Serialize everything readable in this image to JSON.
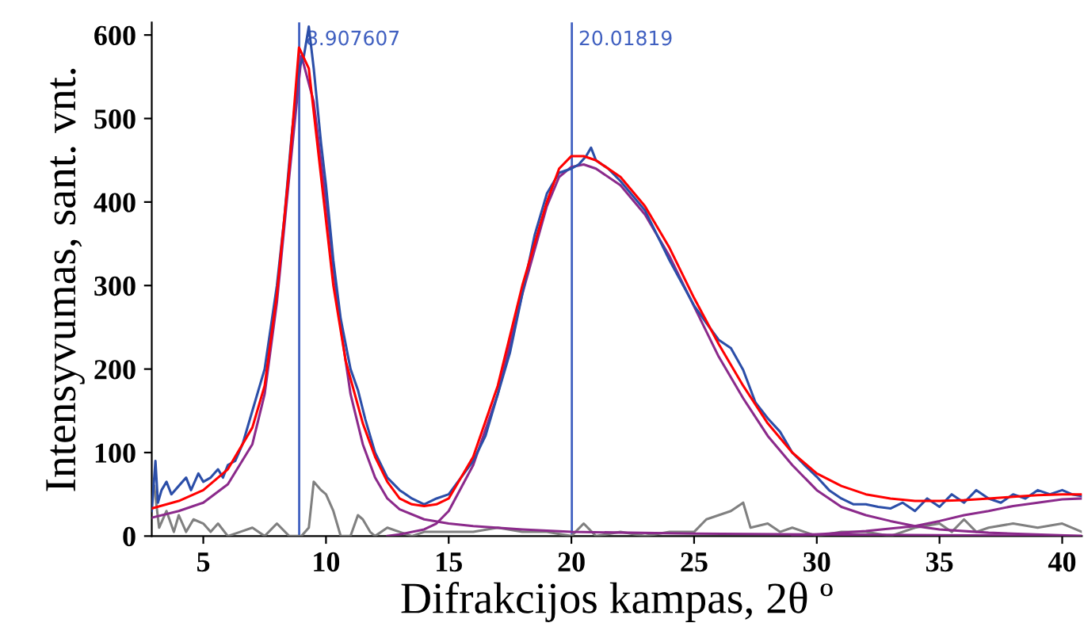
{
  "chart_data": {
    "type": "line",
    "xlabel": "Difrakcijos kampas, 2θ º",
    "ylabel": "Intensyvumas, sant. vnt.",
    "xlim": [
      2.9,
      40.8
    ],
    "ylim": [
      0,
      615
    ],
    "xticks": [
      5,
      10,
      15,
      20,
      25,
      30,
      35,
      40
    ],
    "yticks": [
      0,
      100,
      200,
      300,
      400,
      500,
      600
    ],
    "grid": false,
    "legend": false,
    "series": [
      {
        "color": "#808080",
        "x": [
          3,
          3.2,
          3.5,
          3.8,
          4,
          4.3,
          4.6,
          5,
          5.3,
          5.6,
          6,
          6.5,
          7,
          7.5,
          8,
          8.5,
          9,
          9.3,
          9.5,
          9.8,
          10,
          10.3,
          10.6,
          11,
          11.3,
          11.5,
          11.8,
          12,
          12.5,
          13,
          13.5,
          14,
          15,
          16,
          17,
          18,
          19,
          20,
          20.5,
          21,
          22,
          23,
          24,
          25,
          25.5,
          26,
          26.5,
          27,
          27.3,
          28,
          28.5,
          29,
          30,
          31,
          32,
          33,
          34,
          35,
          35.5,
          36,
          36.5,
          37,
          38,
          39,
          40,
          40.8
        ],
        "values": [
          60,
          10,
          30,
          5,
          25,
          5,
          20,
          15,
          5,
          15,
          0,
          5,
          10,
          0,
          15,
          0,
          0,
          10,
          65,
          55,
          50,
          30,
          0,
          0,
          25,
          20,
          5,
          0,
          10,
          5,
          0,
          5,
          5,
          5,
          10,
          5,
          5,
          0,
          15,
          0,
          5,
          0,
          5,
          5,
          20,
          25,
          30,
          40,
          10,
          15,
          5,
          10,
          0,
          5,
          5,
          0,
          10,
          15,
          5,
          20,
          5,
          10,
          15,
          10,
          15,
          5
        ]
      },
      {
        "color": "#8b2a8b",
        "x": [
          2.9,
          4,
          5,
          6,
          7,
          7.5,
          8,
          8.5,
          9,
          9.5,
          10,
          10.5,
          11,
          11.5,
          12,
          12.5,
          13,
          14,
          15,
          16,
          18,
          20,
          25,
          30,
          35,
          40.8
        ],
        "values": [
          22,
          30,
          40,
          62,
          110,
          170,
          280,
          430,
          575,
          520,
          400,
          270,
          170,
          110,
          70,
          45,
          32,
          20,
          15,
          12,
          8,
          5,
          3,
          2,
          1,
          0
        ]
      },
      {
        "color": "#8b2a8b",
        "x": [
          12.5,
          13,
          14,
          14.5,
          15,
          16,
          17,
          18,
          19,
          19.5,
          20,
          20.5,
          21,
          22,
          23,
          24,
          25,
          26,
          27,
          28,
          29,
          30,
          31,
          32,
          33,
          34,
          35,
          37,
          40.8
        ],
        "values": [
          0,
          2,
          8,
          15,
          30,
          85,
          170,
          290,
          395,
          430,
          442,
          445,
          440,
          420,
          385,
          335,
          275,
          215,
          165,
          120,
          85,
          55,
          35,
          25,
          18,
          12,
          8,
          4,
          0
        ]
      },
      {
        "color": "#8b2a8b",
        "x": [
          29,
          30,
          32,
          34,
          35,
          36,
          37,
          38,
          39,
          40,
          40.8
        ],
        "values": [
          0,
          2,
          6,
          12,
          18,
          25,
          30,
          36,
          40,
          44,
          45
        ]
      },
      {
        "color": "#2b4ea8",
        "x": [
          2.9,
          3.05,
          3.15,
          3.3,
          3.5,
          3.7,
          4,
          4.3,
          4.5,
          4.8,
          5,
          5.3,
          5.6,
          5.8,
          6,
          6.3,
          6.6,
          7,
          7.5,
          8,
          8.3,
          8.6,
          8.9,
          9.1,
          9.3,
          9.5,
          9.8,
          10,
          10.3,
          10.6,
          11,
          11.3,
          11.6,
          12,
          12.5,
          13,
          13.5,
          14,
          14.5,
          15,
          15.5,
          16,
          16.5,
          17,
          17.5,
          18,
          18.5,
          19,
          19.5,
          20,
          20.3,
          20.6,
          20.8,
          21,
          21.5,
          22,
          23,
          24,
          25,
          25.5,
          26,
          26.5,
          27,
          27.5,
          28,
          28.5,
          29,
          29.5,
          30,
          30.5,
          31,
          31.5,
          32,
          32.5,
          33,
          33.5,
          34,
          34.5,
          35,
          35.5,
          36,
          36.5,
          37,
          37.5,
          38,
          38.5,
          39,
          39.5,
          40,
          40.4,
          40.8
        ],
        "values": [
          30,
          90,
          40,
          55,
          65,
          50,
          60,
          70,
          55,
          75,
          65,
          70,
          80,
          70,
          85,
          90,
          110,
          150,
          200,
          300,
          380,
          480,
          560,
          575,
          610,
          560,
          470,
          420,
          330,
          260,
          200,
          175,
          140,
          100,
          70,
          55,
          45,
          38,
          45,
          50,
          70,
          90,
          120,
          170,
          220,
          290,
          360,
          410,
          435,
          440,
          445,
          455,
          465,
          450,
          440,
          425,
          390,
          330,
          276,
          255,
          235,
          225,
          199,
          160,
          141,
          125,
          100,
          85,
          71,
          55,
          45,
          38,
          38,
          35,
          33,
          40,
          30,
          45,
          35,
          50,
          40,
          55,
          45,
          40,
          50,
          45,
          55,
          50,
          55,
          50,
          48
        ]
      },
      {
        "color": "#ff0000",
        "x": [
          2.9,
          4,
          5,
          6,
          7,
          7.5,
          8,
          8.5,
          8.9,
          9.3,
          9.8,
          10.3,
          10.8,
          11.5,
          12,
          12.5,
          13,
          13.5,
          14,
          14.5,
          15,
          16,
          17,
          18,
          19,
          19.5,
          20,
          20.5,
          21,
          22,
          23,
          24,
          25,
          26,
          27,
          28,
          29,
          30,
          31,
          32,
          33,
          34,
          35,
          36,
          37,
          38,
          39,
          40,
          40.8
        ],
        "values": [
          33,
          42,
          55,
          80,
          130,
          180,
          290,
          440,
          585,
          560,
          430,
          300,
          210,
          135,
          95,
          65,
          45,
          38,
          36,
          38,
          45,
          95,
          180,
          300,
          400,
          440,
          455,
          455,
          450,
          430,
          395,
          345,
          285,
          230,
          180,
          135,
          100,
          75,
          60,
          50,
          45,
          42,
          42,
          43,
          45,
          47,
          49,
          50,
          50
        ]
      }
    ],
    "ref_lines": [
      {
        "axis": "x",
        "value": 8.907607,
        "label": "8.907607",
        "color": "#4060c0"
      },
      {
        "axis": "x",
        "value": 20.01819,
        "label": "20.01819",
        "color": "#4060c0"
      }
    ]
  }
}
